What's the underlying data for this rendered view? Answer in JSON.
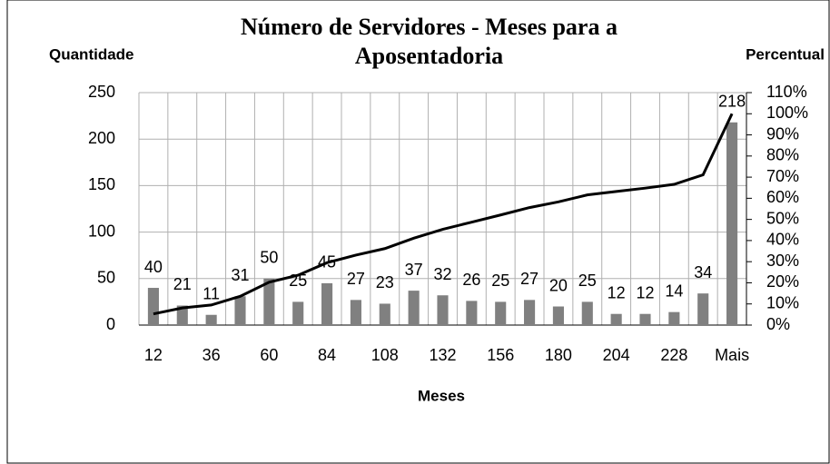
{
  "chart_data": {
    "type": "bar",
    "title": "Número de Servidores - Meses para a Aposentadoria",
    "ylabel": "Quantidade",
    "y2label": "Percentual",
    "xlabel": "Meses",
    "categories": [
      "12",
      null,
      "36",
      null,
      "60",
      null,
      "84",
      null,
      "108",
      null,
      "132",
      null,
      "156",
      null,
      "180",
      null,
      "204",
      null,
      "228",
      null,
      "Mais"
    ],
    "series": [
      {
        "type": "bar",
        "color": "#808080",
        "values": [
          40,
          21,
          11,
          31,
          50,
          25,
          45,
          27,
          23,
          37,
          32,
          26,
          25,
          27,
          20,
          25,
          12,
          12,
          14,
          34,
          218
        ]
      },
      {
        "type": "line",
        "axis": "y2",
        "color": "#000000",
        "values": [
          5.3,
          8.1,
          9.5,
          13.6,
          20.3,
          23.6,
          29.5,
          33.1,
          36.2,
          41.1,
          45.3,
          48.7,
          52.1,
          55.6,
          58.3,
          61.6,
          63.2,
          64.8,
          66.6,
          71.1,
          100
        ]
      }
    ],
    "ylim": [
      0,
      250
    ],
    "yticks": [
      0,
      50,
      100,
      150,
      200,
      250
    ],
    "y2lim": [
      0,
      110
    ],
    "y2ticks": [
      {
        "value": 0,
        "label": "0%"
      },
      {
        "value": 10,
        "label": "10%"
      },
      {
        "value": 20,
        "label": "20%"
      },
      {
        "value": 30,
        "label": "30%"
      },
      {
        "value": 40,
        "label": "40%"
      },
      {
        "value": 50,
        "label": "50%"
      },
      {
        "value": 60,
        "label": "60%"
      },
      {
        "value": 70,
        "label": "70%"
      },
      {
        "value": 80,
        "label": "80%"
      },
      {
        "value": 90,
        "label": "90%"
      },
      {
        "value": 100,
        "label": "100%"
      },
      {
        "value": 110,
        "label": "110%"
      }
    ],
    "grid": true
  }
}
